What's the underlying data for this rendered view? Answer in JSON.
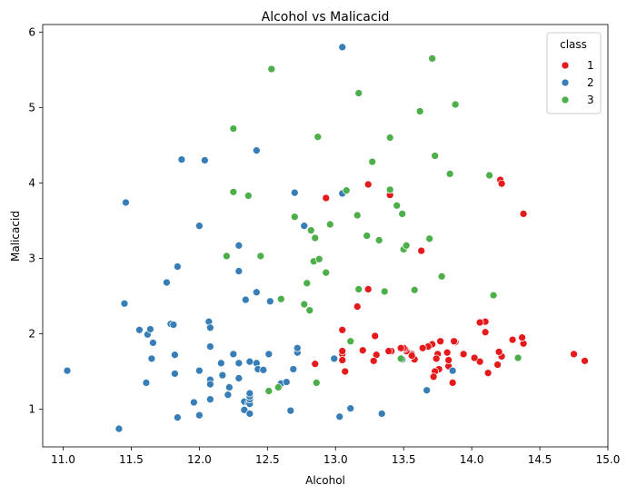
{
  "chart_data": {
    "type": "scatter",
    "title": "Alcohol vs Malicacid",
    "xlabel": "Alcohol",
    "ylabel": "Malicacid",
    "xlim": [
      10.85,
      15.0
    ],
    "ylim": [
      0.5,
      6.1
    ],
    "xticks": [
      "11.0",
      "11.5",
      "12.0",
      "12.5",
      "13.0",
      "13.5",
      "14.0",
      "14.5",
      "15.0"
    ],
    "yticks": [
      "1",
      "2",
      "3",
      "4",
      "5",
      "6"
    ],
    "grid": false,
    "legend": {
      "title": "class",
      "placement": "top-right"
    },
    "series": [
      {
        "name": "1",
        "color": "#e41a1c",
        "points": [
          [
            14.83,
            1.64
          ],
          [
            14.75,
            1.73
          ],
          [
            14.38,
            1.87
          ],
          [
            14.37,
            1.95
          ],
          [
            14.3,
            1.92
          ],
          [
            14.22,
            1.7
          ],
          [
            14.2,
            1.76
          ],
          [
            14.19,
            1.59
          ],
          [
            14.12,
            1.48
          ],
          [
            14.1,
            2.16
          ],
          [
            14.1,
            2.02
          ],
          [
            14.06,
            2.15
          ],
          [
            14.06,
            1.63
          ],
          [
            14.02,
            1.68
          ],
          [
            13.94,
            1.73
          ],
          [
            13.88,
            1.89
          ],
          [
            13.87,
            1.9
          ],
          [
            13.86,
            1.35
          ],
          [
            13.86,
            1.51
          ],
          [
            13.83,
            1.57
          ],
          [
            13.83,
            1.65
          ],
          [
            13.82,
            1.75
          ],
          [
            13.77,
            1.9
          ],
          [
            13.76,
            1.53
          ],
          [
            13.75,
            1.73
          ],
          [
            13.74,
            1.67
          ],
          [
            13.73,
            1.5
          ],
          [
            13.72,
            1.43
          ],
          [
            13.71,
            1.86
          ],
          [
            13.68,
            1.83
          ],
          [
            13.64,
            1.81
          ],
          [
            13.58,
            1.66
          ],
          [
            13.56,
            1.73
          ],
          [
            13.56,
            1.71
          ],
          [
            13.52,
            1.77
          ],
          [
            13.51,
            1.8
          ],
          [
            13.5,
            1.81
          ],
          [
            13.49,
            1.66
          ],
          [
            13.48,
            1.81
          ],
          [
            13.41,
            1.77
          ],
          [
            13.4,
            3.84
          ],
          [
            13.39,
            1.77
          ],
          [
            13.3,
            1.72
          ],
          [
            13.29,
            1.97
          ],
          [
            13.28,
            1.64
          ],
          [
            13.24,
            2.59
          ],
          [
            13.24,
            3.98
          ],
          [
            13.2,
            1.78
          ],
          [
            13.16,
            2.36
          ],
          [
            13.16,
            3.57
          ],
          [
            13.05,
            1.73
          ],
          [
            13.05,
            1.77
          ],
          [
            13.05,
            1.65
          ],
          [
            13.05,
            2.05
          ],
          [
            13.07,
            1.5
          ],
          [
            12.93,
            3.8
          ],
          [
            12.85,
            1.6
          ],
          [
            14.21,
            4.04
          ],
          [
            14.22,
            3.99
          ],
          [
            14.38,
            3.59
          ],
          [
            13.63,
            3.1
          ],
          [
            13.87,
            1.9
          ]
        ]
      },
      {
        "name": "2",
        "color": "#377eb8",
        "points": [
          [
            11.03,
            1.51
          ],
          [
            11.41,
            0.74
          ],
          [
            11.45,
            2.4
          ],
          [
            11.46,
            3.74
          ],
          [
            11.56,
            2.05
          ],
          [
            11.61,
            1.35
          ],
          [
            11.62,
            1.99
          ],
          [
            11.64,
            2.06
          ],
          [
            11.65,
            1.67
          ],
          [
            11.66,
            1.88
          ],
          [
            11.76,
            2.68
          ],
          [
            11.79,
            2.13
          ],
          [
            11.81,
            2.12
          ],
          [
            11.82,
            1.72
          ],
          [
            11.82,
            1.47
          ],
          [
            11.84,
            2.89
          ],
          [
            11.84,
            0.89
          ],
          [
            11.87,
            4.31
          ],
          [
            11.96,
            1.09
          ],
          [
            12.0,
            0.92
          ],
          [
            12.0,
            1.51
          ],
          [
            12.0,
            3.43
          ],
          [
            12.04,
            4.3
          ],
          [
            12.07,
            2.16
          ],
          [
            12.08,
            1.13
          ],
          [
            12.08,
            1.39
          ],
          [
            12.08,
            2.08
          ],
          [
            12.08,
            1.83
          ],
          [
            12.08,
            1.33
          ],
          [
            12.16,
            1.61
          ],
          [
            12.17,
            1.45
          ],
          [
            12.21,
            1.19
          ],
          [
            12.22,
            1.29
          ],
          [
            12.25,
            1.73
          ],
          [
            12.29,
            1.61
          ],
          [
            12.29,
            3.17
          ],
          [
            12.29,
            2.83
          ],
          [
            12.29,
            1.41
          ],
          [
            12.33,
            0.99
          ],
          [
            12.33,
            1.1
          ],
          [
            12.34,
            2.45
          ],
          [
            12.36,
            1.08
          ],
          [
            12.37,
            1.07
          ],
          [
            12.37,
            1.13
          ],
          [
            12.37,
            1.17
          ],
          [
            12.37,
            1.21
          ],
          [
            12.37,
            0.94
          ],
          [
            12.37,
            1.63
          ],
          [
            12.42,
            1.61
          ],
          [
            12.42,
            2.55
          ],
          [
            12.42,
            4.43
          ],
          [
            12.43,
            1.53
          ],
          [
            12.47,
            1.52
          ],
          [
            12.51,
            1.73
          ],
          [
            12.52,
            2.43
          ],
          [
            12.6,
            1.34
          ],
          [
            12.64,
            1.36
          ],
          [
            12.67,
            0.98
          ],
          [
            12.69,
            1.53
          ],
          [
            12.7,
            3.87
          ],
          [
            12.72,
            1.75
          ],
          [
            12.72,
            1.81
          ],
          [
            12.77,
            3.43
          ],
          [
            12.99,
            1.67
          ],
          [
            13.03,
            0.9
          ],
          [
            13.05,
            3.86
          ],
          [
            13.05,
            5.8
          ],
          [
            13.11,
            1.01
          ],
          [
            13.34,
            0.94
          ],
          [
            13.49,
            1.66
          ],
          [
            13.67,
            1.25
          ],
          [
            13.86,
            1.51
          ]
        ]
      },
      {
        "name": "3",
        "color": "#4daf4a",
        "points": [
          [
            12.2,
            3.03
          ],
          [
            12.25,
            3.88
          ],
          [
            12.25,
            4.72
          ],
          [
            12.36,
            3.83
          ],
          [
            12.45,
            3.03
          ],
          [
            12.51,
            1.24
          ],
          [
            12.53,
            5.51
          ],
          [
            12.58,
            1.29
          ],
          [
            12.6,
            2.46
          ],
          [
            12.7,
            3.55
          ],
          [
            12.77,
            2.39
          ],
          [
            12.79,
            2.67
          ],
          [
            12.81,
            2.31
          ],
          [
            12.82,
            3.37
          ],
          [
            12.84,
            2.96
          ],
          [
            12.85,
            3.27
          ],
          [
            12.86,
            1.35
          ],
          [
            12.87,
            4.61
          ],
          [
            12.88,
            2.99
          ],
          [
            12.93,
            2.81
          ],
          [
            12.96,
            3.45
          ],
          [
            13.08,
            3.9
          ],
          [
            13.11,
            1.9
          ],
          [
            13.16,
            3.57
          ],
          [
            13.17,
            2.59
          ],
          [
            13.17,
            5.19
          ],
          [
            13.23,
            3.3
          ],
          [
            13.27,
            4.28
          ],
          [
            13.32,
            3.24
          ],
          [
            13.36,
            2.56
          ],
          [
            13.4,
            3.91
          ],
          [
            13.4,
            4.6
          ],
          [
            13.45,
            3.7
          ],
          [
            13.48,
            1.67
          ],
          [
            13.49,
            3.59
          ],
          [
            13.5,
            3.12
          ],
          [
            13.52,
            3.17
          ],
          [
            13.58,
            2.58
          ],
          [
            13.62,
            4.95
          ],
          [
            13.69,
            3.26
          ],
          [
            13.71,
            5.65
          ],
          [
            13.73,
            4.36
          ],
          [
            13.78,
            2.76
          ],
          [
            13.84,
            4.12
          ],
          [
            13.88,
            5.04
          ],
          [
            14.13,
            4.1
          ],
          [
            14.16,
            2.51
          ],
          [
            14.34,
            1.68
          ]
        ]
      }
    ]
  }
}
